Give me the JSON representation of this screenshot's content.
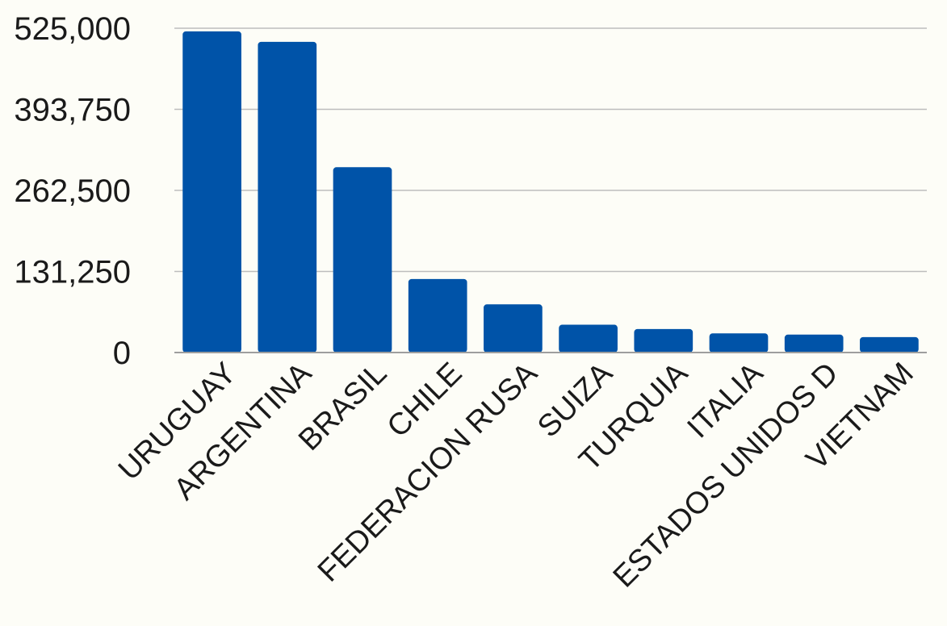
{
  "chart_data": {
    "type": "bar",
    "title": "",
    "xlabel": "",
    "ylabel": "",
    "categories": [
      "URUGUAY",
      "ARGENTINA",
      "BRASIL",
      "CHILE",
      "FEDERACION RUSA",
      "SUIZA",
      "TURQUIA",
      "ITALIA",
      "ESTADOS UNIDOS D",
      "VIETNAM"
    ],
    "values": [
      520000,
      503000,
      300000,
      119000,
      78000,
      45000,
      38000,
      31000,
      29000,
      25000
    ],
    "ylim": [
      0,
      525000
    ],
    "yticks": [
      "0",
      "131,250",
      "262,500",
      "393,750",
      "525,000"
    ],
    "grid": true,
    "legend": "none",
    "bar_color": "#0053a8",
    "grid_color": "#bdbdbd",
    "axis_color": "#9e9e9e"
  }
}
